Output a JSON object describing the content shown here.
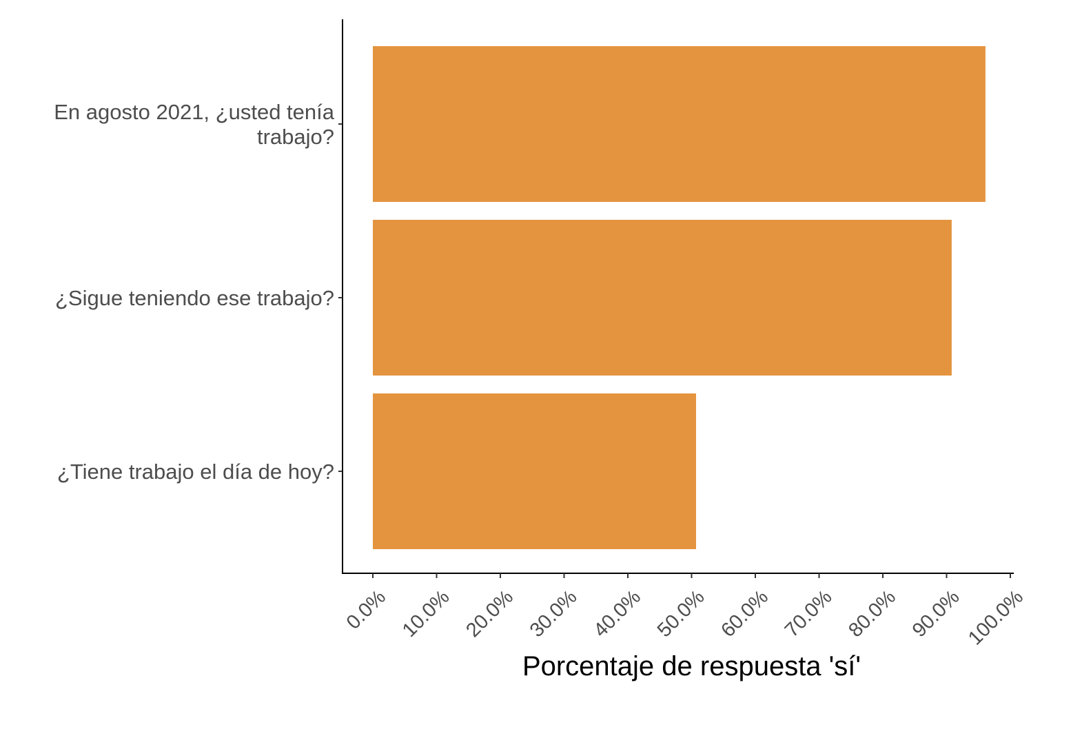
{
  "chart_data": {
    "type": "bar",
    "orientation": "horizontal",
    "categories": [
      "En agosto 2021, ¿usted tenía trabajo?",
      "¿Sigue teniendo ese trabajo?",
      "¿Tiene trabajo el día de hoy?"
    ],
    "category_lines": [
      [
        "En agosto 2021, ¿usted tenía",
        "trabajo?"
      ],
      [
        "¿Sigue teniendo ese trabajo?"
      ],
      [
        "¿Tiene trabajo el día de hoy?"
      ]
    ],
    "values": [
      96.1,
      90.8,
      50.7
    ],
    "title": "",
    "xlabel": "Porcentaje de respuesta 'sí'",
    "ylabel": "",
    "xlim": [
      0,
      100
    ],
    "x_ticks": [
      0,
      10,
      20,
      30,
      40,
      50,
      60,
      70,
      80,
      90,
      100
    ],
    "x_tick_labels": [
      "0.0%",
      "10.0%",
      "20.0%",
      "30.0%",
      "40.0%",
      "50.0%",
      "60.0%",
      "70.0%",
      "80.0%",
      "90.0%",
      "100.0%"
    ],
    "grid": false,
    "legend": "none",
    "bar_color": "#e4943f",
    "axis_color": "#000000",
    "label_color": "#4d4d4d"
  }
}
